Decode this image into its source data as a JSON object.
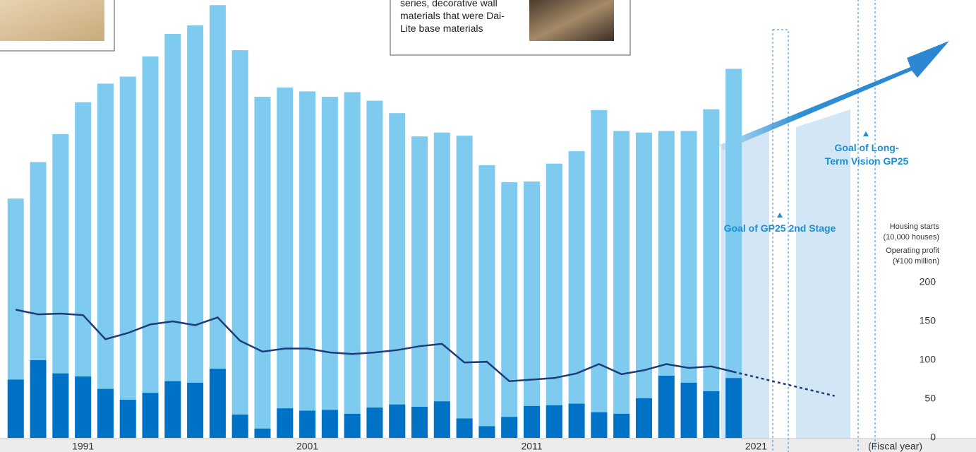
{
  "chart_data": {
    "type": "bar",
    "x": [
      1988,
      1989,
      1990,
      1991,
      1992,
      1993,
      1994,
      1995,
      1996,
      1997,
      1998,
      1999,
      2000,
      2001,
      2002,
      2003,
      2004,
      2005,
      2006,
      2007,
      2008,
      2009,
      2010,
      2011,
      2012,
      2013,
      2014,
      2015,
      2016,
      2017,
      2018,
      2019,
      2020
    ],
    "xlim": [
      1987.3,
      2030.8
    ],
    "xticks": [
      1991,
      2001,
      2011,
      2021
    ],
    "ylim": [
      0,
      563.6
    ],
    "yticks": [
      0,
      50,
      100,
      150,
      200
    ],
    "x_label": "(Fiscal year)",
    "y_label": [
      "Housing starts",
      "(10,000 houses)",
      "Operating profit",
      "(¥100 million)"
    ],
    "annotations": [
      "Goal of GP25 2nd Stage",
      "Goal of Long-Term Vision GP25",
      "series, decorative wall materials that were Dai-Lite base materials"
    ],
    "series": [
      {
        "type": "bar",
        "color": "#7ecbef",
        "values": [
          308,
          355,
          391,
          432,
          456,
          465,
          491,
          520,
          531,
          557,
          499,
          439,
          451,
          446,
          439,
          445,
          434,
          418,
          388,
          393,
          389,
          351,
          329,
          330,
          353,
          369,
          422,
          395,
          393,
          395,
          395,
          423,
          475
        ]
      },
      {
        "type": "bar",
        "color": "#0072c6",
        "values": [
          75,
          100,
          83,
          79,
          63,
          49,
          58,
          73,
          71,
          89,
          30,
          12,
          38,
          35,
          36,
          31,
          39,
          43,
          40,
          47,
          25,
          15,
          27,
          41,
          42,
          44,
          33,
          31,
          51,
          80,
          71,
          60,
          77
        ]
      },
      {
        "type": "line",
        "color": "#1d3d7a",
        "values": [
          165,
          159,
          160,
          158,
          127,
          135,
          146,
          150,
          145,
          155,
          125,
          111,
          115,
          115,
          110,
          108,
          110,
          113,
          118,
          121,
          97,
          98,
          73,
          75,
          77,
          83,
          95,
          82,
          87,
          95,
          90,
          92,
          85
        ]
      },
      {
        "type": "line",
        "color": "#1d3d7a",
        "dashed": true,
        "x": [
          2020,
          2024.5
        ],
        "values": [
          85,
          54
        ]
      }
    ]
  }
}
